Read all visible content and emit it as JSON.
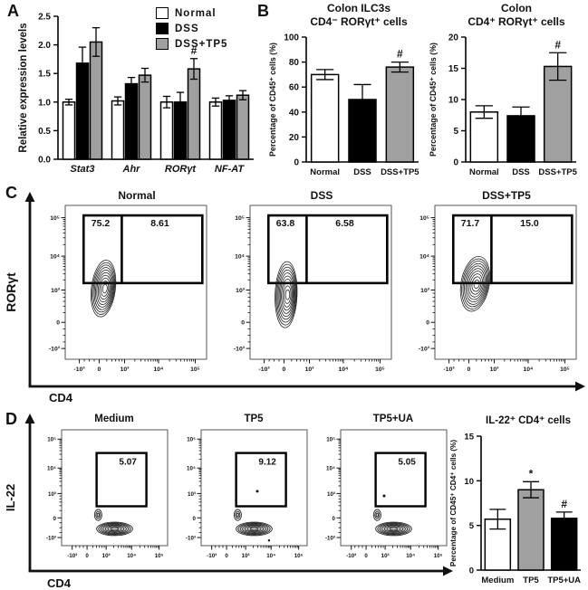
{
  "panels": {
    "a": {
      "label": "A"
    },
    "b": {
      "label": "B"
    },
    "c": {
      "label": "C"
    },
    "d": {
      "label": "D"
    }
  },
  "legend": {
    "items": [
      {
        "label": "Normal",
        "color": "#ffffff"
      },
      {
        "label": "DSS",
        "color": "#000000"
      },
      {
        "label": "DSS+TP5",
        "color": "#a0a0a0"
      }
    ]
  },
  "chart_data": [
    {
      "id": "panelA",
      "type": "bar",
      "ylabel": "Relative expression levels",
      "categories": [
        "Stat3",
        "Ahr",
        "RORγt",
        "NF-AT"
      ],
      "series": [
        {
          "name": "Normal",
          "color": "#ffffff",
          "values": [
            1.0,
            1.02,
            1.0,
            1.0
          ],
          "errors": [
            0.05,
            0.07,
            0.1,
            0.07
          ]
        },
        {
          "name": "DSS",
          "color": "#000000",
          "values": [
            1.68,
            1.32,
            1.0,
            1.03
          ],
          "errors": [
            0.28,
            0.11,
            0.17,
            0.08
          ]
        },
        {
          "name": "DSS+TP5",
          "color": "#a0a0a0",
          "values": [
            2.05,
            1.47,
            1.58,
            1.12
          ],
          "errors": [
            0.25,
            0.12,
            0.18,
            0.08
          ]
        }
      ],
      "annotations": [
        {
          "category": 2,
          "series": 2,
          "text": "#"
        }
      ],
      "ylim": [
        0,
        2.5
      ],
      "yticks": [
        0,
        0.5,
        1,
        1.5,
        2,
        2.5
      ],
      "ytick_labels": [
        "0.0",
        "0.5",
        "1.0",
        "1.5",
        "2.0",
        "2.5"
      ]
    },
    {
      "id": "panelB1",
      "type": "bar",
      "title1": "Colon ILC3s",
      "title2": "CD4⁻ RORγt⁺ cells",
      "ylabel": "Percentage of CD45⁺ cells (%)",
      "categories": [
        "Normal",
        "DSS",
        "DSS+TP5"
      ],
      "values": [
        70,
        50,
        76
      ],
      "errors": [
        4,
        12,
        4
      ],
      "colors": [
        "#ffffff",
        "#000000",
        "#a0a0a0"
      ],
      "annotations": [
        {
          "category": 2,
          "text": "#"
        }
      ],
      "ylim": [
        0,
        100
      ],
      "yticks": [
        0,
        20,
        40,
        60,
        80,
        100
      ],
      "ytick_labels": [
        "0",
        "20",
        "40",
        "60",
        "80",
        "100"
      ]
    },
    {
      "id": "panelB2",
      "type": "bar",
      "title1": "Colon",
      "title2": "CD4⁺ RORγt⁺ cells",
      "ylabel": "Percentage of CD45⁺ cells (%)",
      "categories": [
        "Normal",
        "DSS",
        "DSS+TP5"
      ],
      "values": [
        8,
        7.4,
        15.3
      ],
      "errors": [
        1,
        1.4,
        2.2
      ],
      "colors": [
        "#ffffff",
        "#000000",
        "#a0a0a0"
      ],
      "annotations": [
        {
          "category": 2,
          "text": "#"
        }
      ],
      "ylim": [
        0,
        20
      ],
      "yticks": [
        0,
        5,
        10,
        15,
        20
      ],
      "ytick_labels": [
        "0",
        "5",
        "10",
        "15",
        "20"
      ]
    },
    {
      "id": "panelC",
      "type": "contour",
      "xlabel": "CD4",
      "ylabel": "RORγt",
      "xticks": [
        "-10³",
        "0",
        "10³",
        "10⁴",
        "10⁵"
      ],
      "yticks": [
        "-10³",
        "0",
        "10³",
        "10⁴",
        "10⁵"
      ],
      "plots": [
        {
          "title": "Normal",
          "gate_left": "75.2",
          "gate_right": "8.61"
        },
        {
          "title": "DSS",
          "gate_left": "63.8",
          "gate_right": "6.58"
        },
        {
          "title": "DSS+TP5",
          "gate_left": "71.7",
          "gate_right": "15.0"
        }
      ]
    },
    {
      "id": "panelDflow",
      "type": "contour",
      "xlabel": "CD4",
      "ylabel": "IL-22",
      "xticks": [
        "-10³",
        "0",
        "10³",
        "10⁴",
        "10⁵"
      ],
      "yticks": [
        "-10³",
        "0",
        "10³",
        "10⁴",
        "10⁵"
      ],
      "plots": [
        {
          "title": "Medium",
          "gate": "5.07"
        },
        {
          "title": "TP5",
          "gate": "9.12"
        },
        {
          "title": "TP5+UA",
          "gate": "5.05"
        }
      ]
    },
    {
      "id": "panelDbar",
      "type": "bar",
      "title": "IL-22⁺ CD4⁺ cells",
      "ylabel": "Percentage of CD45⁺ CD4⁺ cells (%)",
      "categories": [
        "Medium",
        "TP5",
        "TP5+UA"
      ],
      "values": [
        5.7,
        9.0,
        5.8
      ],
      "errors": [
        1.1,
        0.9,
        0.7
      ],
      "colors": [
        "#ffffff",
        "#a0a0a0",
        "#000000"
      ],
      "annotations": [
        {
          "category": 1,
          "text": "*"
        },
        {
          "category": 2,
          "text": "#"
        }
      ],
      "ylim": [
        0,
        15
      ],
      "yticks": [
        0,
        5,
        10,
        15
      ],
      "ytick_labels": [
        "0",
        "5",
        "10",
        "15"
      ]
    }
  ]
}
